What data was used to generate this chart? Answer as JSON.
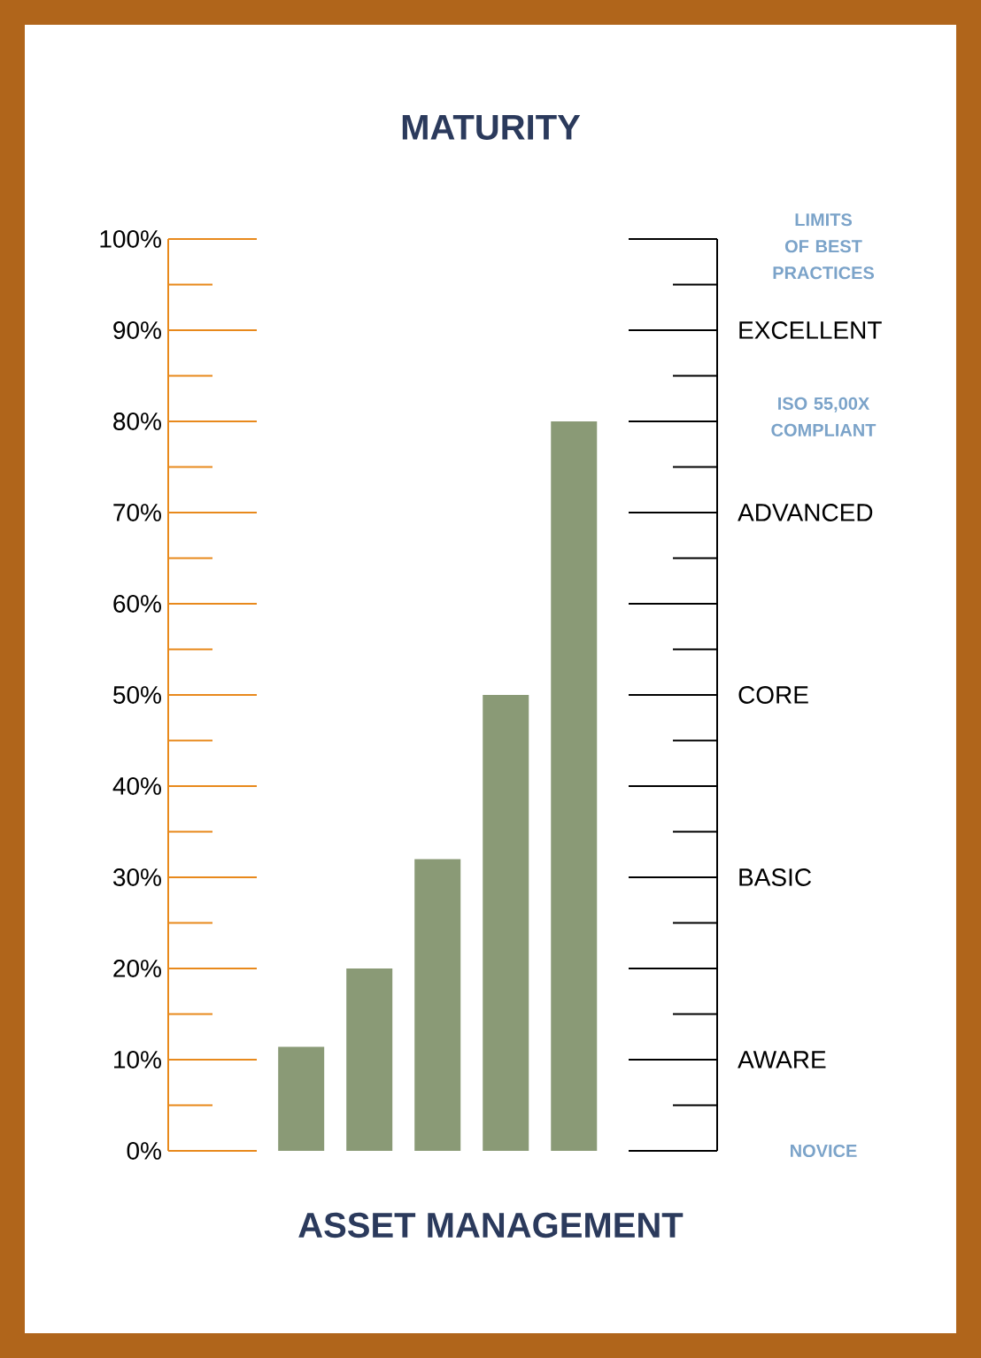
{
  "chart_data": {
    "type": "bar",
    "title": "MATURITY",
    "xlabel": "ASSET MANAGEMENT",
    "categories": [
      null,
      null,
      null,
      null,
      null
    ],
    "values": [
      11.4,
      20,
      32,
      50,
      80
    ],
    "color": "#8a9a76",
    "ylim": [
      0,
      100
    ],
    "yticks": [
      {
        "value": 0,
        "label": "0%"
      },
      {
        "value": 10,
        "label": "10%"
      },
      {
        "value": 20,
        "label": "20%"
      },
      {
        "value": 30,
        "label": "30%"
      },
      {
        "value": 40,
        "label": "40%"
      },
      {
        "value": 50,
        "label": "50%"
      },
      {
        "value": 60,
        "label": "60%"
      },
      {
        "value": 70,
        "label": "70%"
      },
      {
        "value": 80,
        "label": "80%"
      },
      {
        "value": 90,
        "label": "90%"
      },
      {
        "value": 100,
        "label": "100%"
      }
    ],
    "annotations": [
      "LIMITS OF BEST PRACTICES",
      "EXCELLENT",
      "ISO 55,00X COMPLIANT",
      "ADVANCED",
      "CORE",
      "BASIC",
      "AWARE",
      "NOVICE"
    ]
  }
}
